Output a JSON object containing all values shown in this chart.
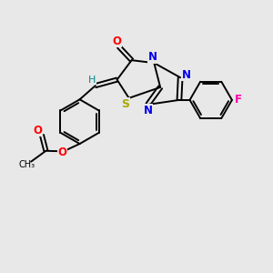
{
  "background_color": "#e8e8e8",
  "atom_colors": {
    "C": "#000000",
    "N": "#0000ee",
    "O": "#ff0000",
    "S": "#aaaa00",
    "F": "#ff00aa",
    "H": "#008888"
  },
  "figsize": [
    3.0,
    3.0
  ],
  "dpi": 100
}
